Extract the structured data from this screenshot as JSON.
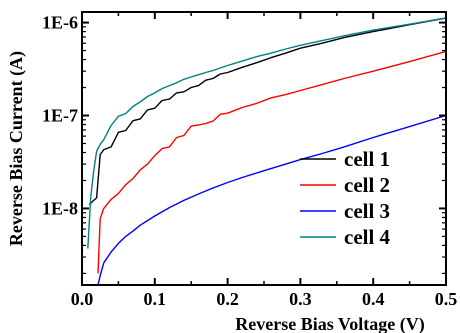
{
  "chart_data": {
    "type": "line",
    "xlabel": "Reverse Bias Voltage (V)",
    "ylabel": "Reverse Bias Current (A)",
    "xscale": "linear",
    "yscale": "log",
    "xlim": [
      0,
      0.5
    ],
    "ylim": [
      1.5e-09,
      1.3e-06
    ],
    "x_ticks": [
      0.0,
      0.1,
      0.2,
      0.3,
      0.4,
      0.5
    ],
    "x_tick_labels": [
      "0.0",
      "0.1",
      "0.2",
      "0.3",
      "0.4",
      "0.5"
    ],
    "y_ticks": [
      1e-08,
      1e-07,
      1e-06
    ],
    "y_tick_labels": [
      "1E-8",
      "1E-7",
      "1E-6"
    ],
    "grid": false,
    "legend_position": "center-right",
    "series": [
      {
        "name": "cell 1",
        "color": "#000000",
        "x": [
          0.01,
          0.015,
          0.02,
          0.025,
          0.03,
          0.04,
          0.05,
          0.06,
          0.07,
          0.08,
          0.09,
          0.1,
          0.11,
          0.12,
          0.13,
          0.14,
          0.15,
          0.16,
          0.17,
          0.18,
          0.19,
          0.2,
          0.22,
          0.24,
          0.26,
          0.28,
          0.3,
          0.33,
          0.36,
          0.4,
          0.45,
          0.5
        ],
        "y": [
          1.1e-08,
          1.2e-08,
          1.3e-08,
          3.8e-08,
          4.3e-08,
          4.6e-08,
          6.6e-08,
          6.9e-08,
          8.8e-08,
          9.2e-08,
          1.15e-07,
          1.2e-07,
          1.45e-07,
          1.5e-07,
          1.75e-07,
          1.8e-07,
          2e-07,
          2.1e-07,
          2.4e-07,
          2.5e-07,
          2.8e-07,
          2.9e-07,
          3.3e-07,
          3.7e-07,
          4.2e-07,
          4.7e-07,
          5.3e-07,
          6e-07,
          6.9e-07,
          8e-07,
          9.5e-07,
          1.12e-06
        ]
      },
      {
        "name": "cell 2",
        "color": "#ff0000",
        "x": [
          0.022,
          0.025,
          0.03,
          0.04,
          0.05,
          0.06,
          0.07,
          0.08,
          0.09,
          0.1,
          0.11,
          0.12,
          0.13,
          0.14,
          0.15,
          0.16,
          0.17,
          0.18,
          0.19,
          0.2,
          0.22,
          0.24,
          0.26,
          0.28,
          0.3,
          0.33,
          0.36,
          0.4,
          0.45,
          0.5
        ],
        "y": [
          2e-09,
          7.8e-09,
          1e-08,
          1.25e-08,
          1.45e-08,
          1.8e-08,
          2.1e-08,
          2.6e-08,
          3e-08,
          3.7e-08,
          4.4e-08,
          4.6e-08,
          5.8e-08,
          6.1e-08,
          7.7e-08,
          7.9e-08,
          8.2e-08,
          8.7e-08,
          1.03e-07,
          1.06e-07,
          1.22e-07,
          1.35e-07,
          1.55e-07,
          1.68e-07,
          1.86e-07,
          2.15e-07,
          2.5e-07,
          3e-07,
          3.8e-07,
          4.9e-07
        ]
      },
      {
        "name": "cell 3",
        "color": "#0000ff",
        "x": [
          0.022,
          0.025,
          0.03,
          0.04,
          0.05,
          0.06,
          0.07,
          0.08,
          0.1,
          0.12,
          0.14,
          0.16,
          0.18,
          0.2,
          0.22,
          0.25,
          0.28,
          0.3,
          0.33,
          0.36,
          0.4,
          0.45,
          0.5
        ],
        "y": [
          1.5e-09,
          1.9e-09,
          2.6e-09,
          3.4e-09,
          4.2e-09,
          5e-09,
          5.7e-09,
          6.6e-09,
          8.3e-09,
          1.02e-08,
          1.22e-08,
          1.43e-08,
          1.66e-08,
          1.9e-08,
          2.15e-08,
          2.55e-08,
          3e-08,
          3.35e-08,
          3.9e-08,
          4.6e-08,
          5.8e-08,
          7.6e-08,
          1e-07
        ]
      },
      {
        "name": "cell 4",
        "color": "#008080",
        "x": [
          0.008,
          0.012,
          0.016,
          0.02,
          0.025,
          0.03,
          0.04,
          0.05,
          0.06,
          0.07,
          0.08,
          0.09,
          0.1,
          0.11,
          0.12,
          0.13,
          0.14,
          0.15,
          0.16,
          0.17,
          0.18,
          0.2,
          0.22,
          0.24,
          0.26,
          0.28,
          0.3,
          0.33,
          0.36,
          0.4,
          0.45,
          0.5
        ],
        "y": [
          3.7e-09,
          1.3e-08,
          2.5e-08,
          4.1e-08,
          4.9e-08,
          5.5e-08,
          7.8e-08,
          9.8e-08,
          1.05e-07,
          1.25e-07,
          1.4e-07,
          1.6e-07,
          1.75e-07,
          1.95e-07,
          2.1e-07,
          2.25e-07,
          2.45e-07,
          2.6e-07,
          2.75e-07,
          2.9e-07,
          3.05e-07,
          3.45e-07,
          3.85e-07,
          4.3e-07,
          4.7e-07,
          5.2e-07,
          5.7e-07,
          6.4e-07,
          7.2e-07,
          8.3e-07,
          9.6e-07,
          1.12e-06
        ]
      }
    ]
  }
}
